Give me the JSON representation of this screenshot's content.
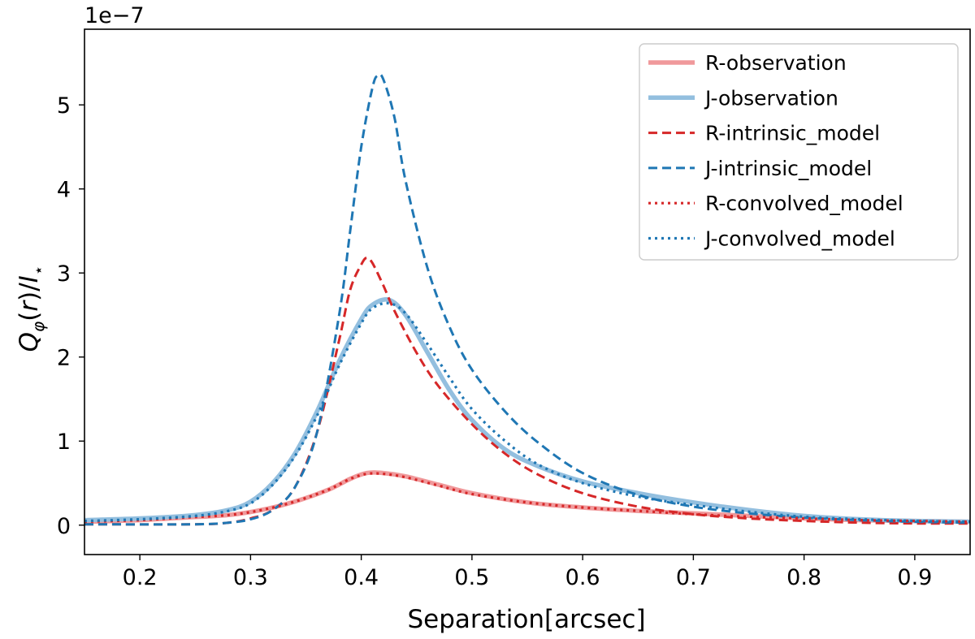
{
  "chart_data": {
    "type": "line",
    "xlabel": "Separation[arcsec]",
    "ylabel": "Q_φ(r)/I_⋆",
    "ylabel_parts": {
      "Q": "Q",
      "phi": "φ",
      "open": "(",
      "r": "r",
      "close": ")/",
      "I": "I",
      "star": "⋆"
    },
    "y_offset_label": "1e−7",
    "xlim": [
      0.15,
      0.95
    ],
    "ylim": [
      -0.35,
      5.9
    ],
    "y_scale": 1e-07,
    "xticks": [
      0.2,
      0.3,
      0.4,
      0.5,
      0.6,
      0.7,
      0.8,
      0.9
    ],
    "xtick_labels": [
      "0.2",
      "0.3",
      "0.4",
      "0.5",
      "0.6",
      "0.7",
      "0.8",
      "0.9"
    ],
    "yticks": [
      0,
      1,
      2,
      3,
      4,
      5
    ],
    "ytick_labels": [
      "0",
      "1",
      "2",
      "3",
      "4",
      "5"
    ],
    "grid": false,
    "legend_position": "top-right",
    "series": [
      {
        "name": "R-observation",
        "color": "#f0999b",
        "style": "solid-thick",
        "x": [
          0.15,
          0.2,
          0.24,
          0.28,
          0.31,
          0.34,
          0.37,
          0.39,
          0.405,
          0.42,
          0.44,
          0.47,
          0.5,
          0.55,
          0.6,
          0.65,
          0.7,
          0.75,
          0.8,
          0.85,
          0.9,
          0.95
        ],
        "values": [
          0.04,
          0.06,
          0.09,
          0.12,
          0.18,
          0.28,
          0.42,
          0.55,
          0.62,
          0.62,
          0.58,
          0.48,
          0.38,
          0.27,
          0.21,
          0.17,
          0.14,
          0.11,
          0.08,
          0.06,
          0.05,
          0.04
        ]
      },
      {
        "name": "J-observation",
        "color": "#93bfdf",
        "style": "solid-thick",
        "x": [
          0.15,
          0.2,
          0.25,
          0.28,
          0.3,
          0.32,
          0.34,
          0.36,
          0.38,
          0.4,
          0.41,
          0.425,
          0.44,
          0.46,
          0.48,
          0.5,
          0.53,
          0.56,
          0.6,
          0.65,
          0.7,
          0.75,
          0.8,
          0.85,
          0.9,
          0.95
        ],
        "values": [
          0.06,
          0.08,
          0.12,
          0.18,
          0.28,
          0.5,
          0.85,
          1.35,
          1.95,
          2.45,
          2.62,
          2.68,
          2.5,
          2.05,
          1.6,
          1.25,
          0.9,
          0.7,
          0.52,
          0.38,
          0.27,
          0.18,
          0.11,
          0.07,
          0.05,
          0.04
        ]
      },
      {
        "name": "R-intrinsic_model",
        "color": "#d62728",
        "style": "dashed",
        "x": [
          0.15,
          0.25,
          0.28,
          0.3,
          0.32,
          0.34,
          0.36,
          0.38,
          0.39,
          0.4,
          0.405,
          0.41,
          0.42,
          0.43,
          0.45,
          0.47,
          0.5,
          0.53,
          0.56,
          0.6,
          0.65,
          0.7,
          0.75,
          0.8,
          0.85,
          0.9,
          0.95
        ],
        "values": [
          0.01,
          0.01,
          0.03,
          0.08,
          0.18,
          0.45,
          1.1,
          2.2,
          2.8,
          3.1,
          3.18,
          3.12,
          2.85,
          2.55,
          2.05,
          1.65,
          1.2,
          0.85,
          0.6,
          0.38,
          0.22,
          0.13,
          0.08,
          0.05,
          0.03,
          0.02,
          0.02
        ]
      },
      {
        "name": "J-intrinsic_model",
        "color": "#1f77b4",
        "style": "dashed",
        "x": [
          0.15,
          0.25,
          0.28,
          0.3,
          0.32,
          0.34,
          0.36,
          0.38,
          0.39,
          0.4,
          0.41,
          0.415,
          0.42,
          0.43,
          0.44,
          0.46,
          0.48,
          0.5,
          0.53,
          0.56,
          0.6,
          0.65,
          0.7,
          0.75,
          0.8,
          0.85,
          0.9,
          0.95
        ],
        "values": [
          0.01,
          0.01,
          0.03,
          0.07,
          0.18,
          0.45,
          1.1,
          2.5,
          3.5,
          4.5,
          5.2,
          5.35,
          5.3,
          4.85,
          4.1,
          3.05,
          2.35,
          1.85,
          1.35,
          0.98,
          0.62,
          0.36,
          0.22,
          0.14,
          0.09,
          0.06,
          0.04,
          0.03
        ]
      },
      {
        "name": "R-convolved_model",
        "color": "#d62728",
        "style": "dotted",
        "x": [
          0.15,
          0.2,
          0.24,
          0.28,
          0.31,
          0.34,
          0.37,
          0.39,
          0.405,
          0.42,
          0.44,
          0.47,
          0.5,
          0.55,
          0.6,
          0.65,
          0.7,
          0.75,
          0.8,
          0.85,
          0.9,
          0.95
        ],
        "values": [
          0.04,
          0.06,
          0.09,
          0.12,
          0.18,
          0.28,
          0.42,
          0.55,
          0.61,
          0.61,
          0.57,
          0.47,
          0.37,
          0.27,
          0.21,
          0.17,
          0.13,
          0.1,
          0.08,
          0.06,
          0.05,
          0.04
        ]
      },
      {
        "name": "J-convolved_model",
        "color": "#1f77b4",
        "style": "dotted",
        "x": [
          0.15,
          0.2,
          0.25,
          0.28,
          0.3,
          0.32,
          0.34,
          0.36,
          0.38,
          0.4,
          0.41,
          0.425,
          0.44,
          0.46,
          0.48,
          0.5,
          0.53,
          0.56,
          0.6,
          0.65,
          0.7,
          0.75,
          0.8,
          0.85,
          0.9,
          0.95
        ],
        "values": [
          0.05,
          0.07,
          0.11,
          0.17,
          0.26,
          0.48,
          0.82,
          1.3,
          1.9,
          2.4,
          2.58,
          2.64,
          2.52,
          2.15,
          1.75,
          1.38,
          1.0,
          0.72,
          0.5,
          0.34,
          0.24,
          0.16,
          0.1,
          0.07,
          0.05,
          0.04
        ]
      }
    ]
  }
}
